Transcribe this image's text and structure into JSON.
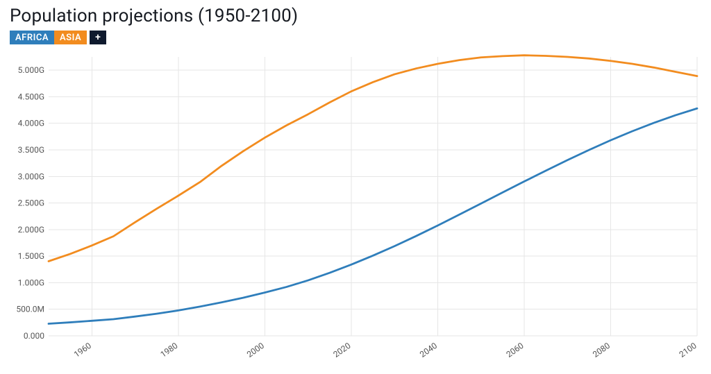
{
  "title": "Population projections (1950-2100)",
  "legend": {
    "items": [
      {
        "label": "AFRICA",
        "color": "#2f7ebb"
      },
      {
        "label": "ASIA",
        "color": "#f28c1f"
      }
    ],
    "add_label": "+",
    "add_bg": "#0f1a2e"
  },
  "chart": {
    "type": "line",
    "background_color": "#ffffff",
    "grid_color": "#e6e6e6",
    "axis_text_color": "#555555",
    "axis_fontsize": 12,
    "line_width": 2.8,
    "x": {
      "min": 1950,
      "max": 2100,
      "ticks": [
        1960,
        1980,
        2000,
        2020,
        2040,
        2060,
        2080,
        2100
      ],
      "tick_labels": [
        "1960",
        "1980",
        "2000",
        "2020",
        "2040",
        "2060",
        "2080",
        "2100"
      ],
      "rotate": -35
    },
    "y": {
      "min": 0,
      "max": 5250000000,
      "ticks": [
        0,
        500000000,
        1000000000,
        1500000000,
        2000000000,
        2500000000,
        3000000000,
        3500000000,
        4000000000,
        4500000000,
        5000000000
      ],
      "tick_labels": [
        "0.000",
        "500.0M",
        "1.000G",
        "1.500G",
        "2.000G",
        "2.500G",
        "3.000G",
        "3.500G",
        "4.000G",
        "4.500G",
        "5.000G"
      ]
    },
    "series": [
      {
        "name": "AFRICA",
        "color": "#2f7ebb",
        "x": [
          1950,
          1955,
          1960,
          1965,
          1970,
          1975,
          1980,
          1985,
          1990,
          1995,
          2000,
          2005,
          2010,
          2015,
          2020,
          2025,
          2030,
          2035,
          2040,
          2045,
          2050,
          2055,
          2060,
          2065,
          2070,
          2075,
          2080,
          2085,
          2090,
          2095,
          2100
        ],
        "y": [
          228000000,
          254000000,
          283000000,
          314000000,
          363000000,
          416000000,
          478000000,
          550000000,
          630000000,
          717000000,
          814000000,
          920000000,
          1044000000,
          1186000000,
          1341000000,
          1509000000,
          1688000000,
          1878000000,
          2077000000,
          2282000000,
          2489000000,
          2698000000,
          2905000000,
          3109000000,
          3308000000,
          3499000000,
          3681000000,
          3851000000,
          4008000000,
          4152000000,
          4280000000
        ]
      },
      {
        "name": "ASIA",
        "color": "#f28c1f",
        "x": [
          1950,
          1955,
          1960,
          1965,
          1970,
          1975,
          1980,
          1985,
          1990,
          1995,
          2000,
          2005,
          2010,
          2015,
          2020,
          2025,
          2030,
          2035,
          2040,
          2045,
          2050,
          2055,
          2060,
          2065,
          2070,
          2075,
          2080,
          2085,
          2090,
          2095,
          2100
        ],
        "y": [
          1404000000,
          1542000000,
          1700000000,
          1874000000,
          2138000000,
          2393000000,
          2638000000,
          2893000000,
          3199000000,
          3475000000,
          3730000000,
          3960000000,
          4170000000,
          4393000000,
          4601000000,
          4774000000,
          4923000000,
          5032000000,
          5120000000,
          5190000000,
          5240000000,
          5265000000,
          5280000000,
          5270000000,
          5250000000,
          5220000000,
          5175000000,
          5120000000,
          5050000000,
          4970000000,
          4890000000
        ]
      }
    ]
  }
}
